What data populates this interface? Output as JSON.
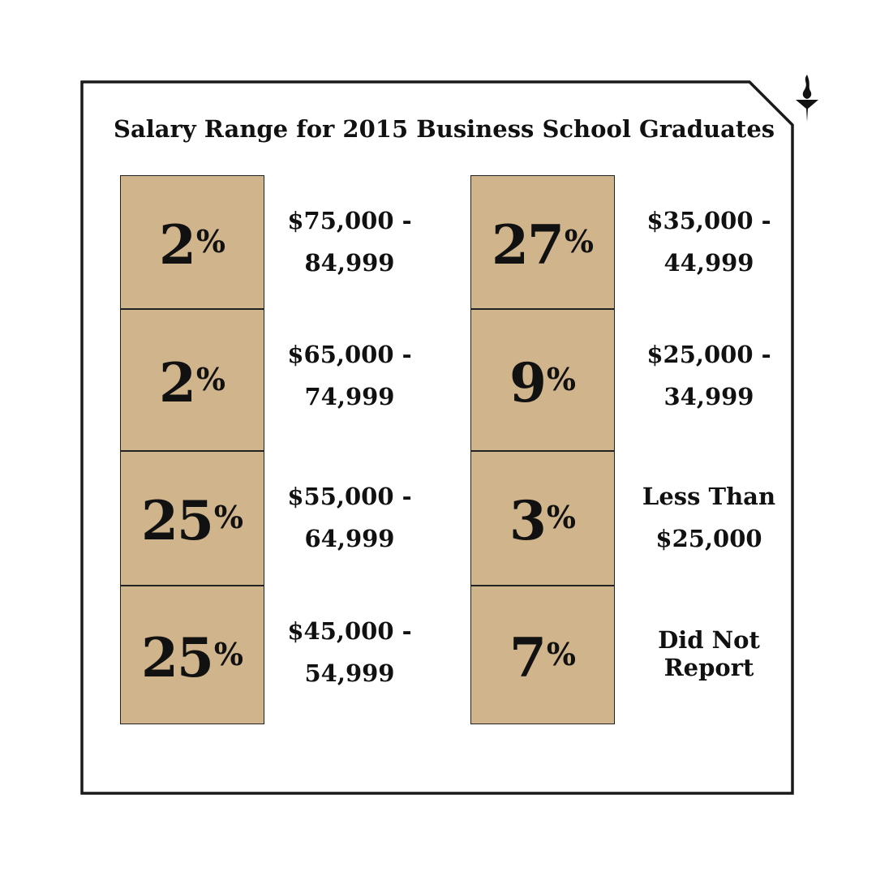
{
  "chart_data": {
    "type": "table",
    "title": "Salary Range for 2015 Business School Graduates",
    "rows": [
      {
        "percent": "2",
        "range_line1": "$75,000 -",
        "range_line2": "84,999",
        "value": 2
      },
      {
        "percent": "2",
        "range_line1": "$65,000 -",
        "range_line2": "74,999",
        "value": 2
      },
      {
        "percent": "25",
        "range_line1": "$55,000 -",
        "range_line2": "64,999",
        "value": 25
      },
      {
        "percent": "25",
        "range_line1": "$45,000 -",
        "range_line2": "54,999",
        "value": 25
      },
      {
        "percent": "27",
        "range_line1": "$35,000 -",
        "range_line2": "44,999",
        "value": 27
      },
      {
        "percent": "9",
        "range_line1": "$25,000 -",
        "range_line2": "34,999",
        "value": 9
      },
      {
        "percent": "3",
        "range_line1": "Less Than",
        "range_line2": "$25,000",
        "value": 3
      },
      {
        "percent": "7",
        "range_line1": "Did Not",
        "range_line2": "Report",
        "value": 7
      }
    ],
    "percent_symbol": "%"
  },
  "colors": {
    "tile": "#d0b48c",
    "border": "#222222",
    "text": "#111111"
  },
  "icons": [
    "torch-logo-icon"
  ]
}
